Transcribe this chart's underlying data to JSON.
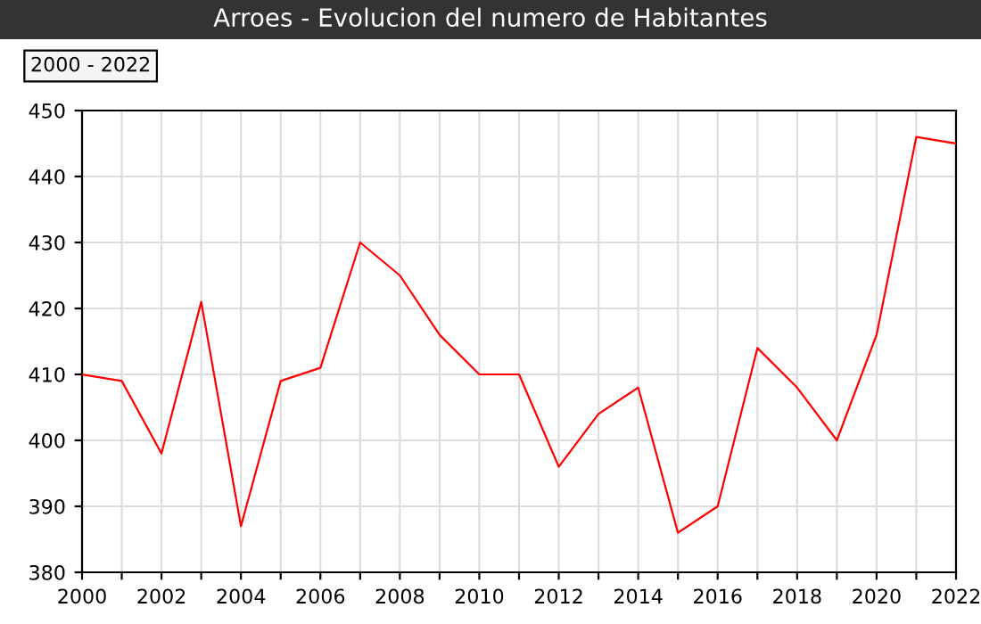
{
  "chart_data": {
    "type": "line",
    "title": "Arroes - Evolucion del numero de Habitantes",
    "annotations": [
      "2000 - 2022"
    ],
    "x": [
      2000,
      2001,
      2002,
      2003,
      2004,
      2005,
      2006,
      2007,
      2008,
      2009,
      2010,
      2011,
      2012,
      2013,
      2014,
      2015,
      2016,
      2017,
      2018,
      2019,
      2020,
      2021,
      2022
    ],
    "series": [
      {
        "color": "#ff0000",
        "values": [
          410,
          409,
          398,
          421,
          387,
          409,
          411,
          430,
          425,
          416,
          410,
          410,
          396,
          404,
          408,
          386,
          390,
          414,
          408,
          400,
          416,
          446,
          445
        ]
      }
    ],
    "xlim": [
      2000,
      2022
    ],
    "xticks": [
      2000,
      {
        "value": 2001,
        "label": null
      },
      2002,
      {
        "value": 2003,
        "label": null
      },
      2004,
      {
        "value": 2005,
        "label": null
      },
      2006,
      {
        "value": 2007,
        "label": null
      },
      2008,
      {
        "value": 2009,
        "label": null
      },
      2010,
      {
        "value": 2011,
        "label": null
      },
      2012,
      {
        "value": 2013,
        "label": null
      },
      2014,
      {
        "value": 2015,
        "label": null
      },
      2016,
      {
        "value": 2017,
        "label": null
      },
      2018,
      {
        "value": 2019,
        "label": null
      },
      2020,
      {
        "value": 2021,
        "label": null
      },
      2022
    ],
    "ylim": [
      380,
      450
    ],
    "yticks": [
      380,
      390,
      400,
      410,
      420,
      430,
      440,
      450
    ],
    "grid": true,
    "marker": "none",
    "line_style": "solid",
    "legend": false
  }
}
